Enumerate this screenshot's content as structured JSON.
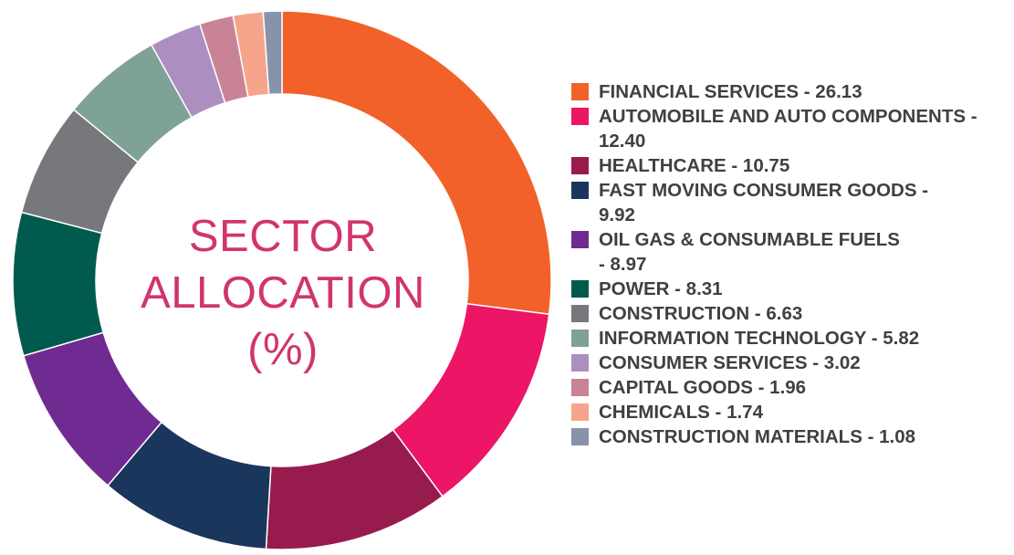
{
  "chart_data": {
    "type": "pie",
    "title": "SECTOR ALLOCATION (%)",
    "title_lines": [
      "SECTOR",
      "ALLOCATION",
      "(%)"
    ],
    "legend_placement": "right",
    "categories": [
      "FINANCIAL SERVICES",
      "AUTOMOBILE AND AUTO COMPONENTS",
      "HEALTHCARE",
      "FAST MOVING CONSUMER GOODS",
      "OIL GAS & CONSUMABLE FUELS",
      "POWER",
      "CONSTRUCTION",
      "INFORMATION TECHNOLOGY",
      "CONSUMER SERVICES",
      "CAPITAL GOODS",
      "CHEMICALS",
      "CONSTRUCTION MATERIALS"
    ],
    "values": [
      26.13,
      12.4,
      10.75,
      9.92,
      8.97,
      8.31,
      6.63,
      5.82,
      3.02,
      1.96,
      1.74,
      1.08
    ],
    "legend_labels": [
      "FINANCIAL SERVICES - 26.13",
      "AUTOMOBILE AND AUTO COMPONENTS -\n12.40",
      "HEALTHCARE - 10.75",
      "FAST MOVING CONSUMER GOODS -\n9.92",
      "OIL GAS & CONSUMABLE FUELS\n- 8.97",
      "POWER - 8.31",
      "CONSTRUCTION - 6.63",
      "INFORMATION TECHNOLOGY - 5.82",
      "CONSUMER SERVICES - 3.02",
      "CAPITAL GOODS - 1.96",
      "CHEMICALS - 1.74",
      "CONSTRUCTION MATERIALS - 1.08"
    ],
    "colors": [
      "#f26129",
      "#ec1566",
      "#981b4e",
      "#1b365d",
      "#702b92",
      "#005b4e",
      "#77787b",
      "#7fa296",
      "#ad8ec1",
      "#c98397",
      "#f6a48b",
      "#8693aa"
    ],
    "title_color": "#d1346f"
  }
}
